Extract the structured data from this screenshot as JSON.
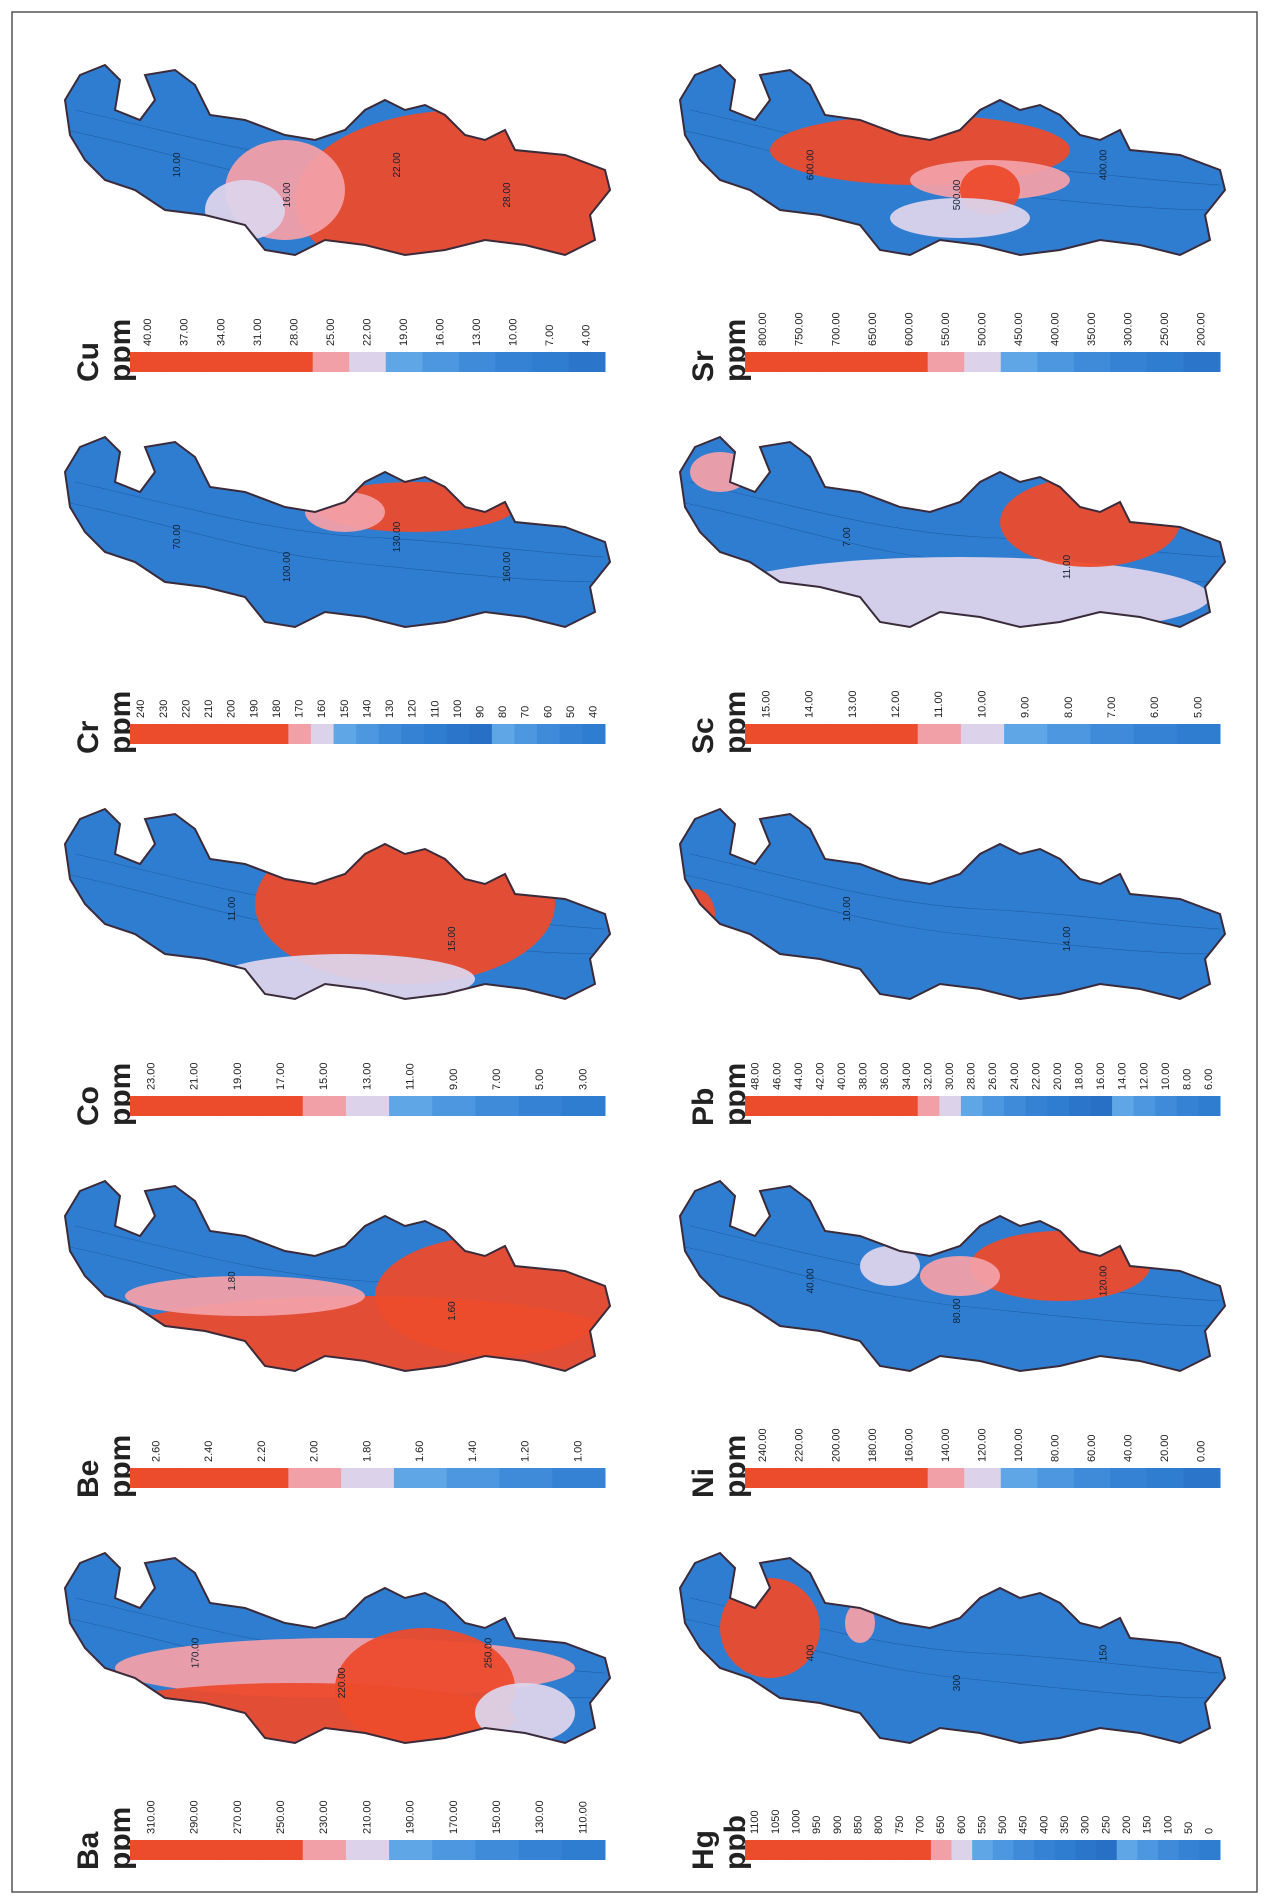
{
  "panels": [
    {
      "element": "Cu",
      "unit": "ppm",
      "legend": [
        "40.00",
        "37.00",
        "34.00",
        "31.00",
        "28.00",
        "25.00",
        "22.00",
        "19.00",
        "16.00",
        "13.00",
        "10.00",
        "7.00",
        "4.00"
      ],
      "contours": [
        "10.00",
        "16.00",
        "22.00",
        "28.00"
      ]
    },
    {
      "element": "Cr",
      "unit": "ppm",
      "legend": [
        "240",
        "230",
        "220",
        "210",
        "200",
        "190",
        "180",
        "170",
        "160",
        "150",
        "140",
        "130",
        "120",
        "110",
        "100",
        "90",
        "80",
        "70",
        "60",
        "50",
        "40"
      ],
      "contours": [
        "70.00",
        "100.00",
        "130.00",
        "160.00"
      ]
    },
    {
      "element": "Co",
      "unit": "ppm",
      "legend": [
        "23.00",
        "21.00",
        "19.00",
        "17.00",
        "15.00",
        "13.00",
        "11.00",
        "9.00",
        "7.00",
        "5.00",
        "3.00"
      ],
      "contours": [
        "11.00",
        "15.00"
      ]
    },
    {
      "element": "Be",
      "unit": "ppm",
      "legend": [
        "2.60",
        "2.40",
        "2.20",
        "2.00",
        "1.80",
        "1.60",
        "1.40",
        "1.20",
        "1.00"
      ],
      "contours": [
        "1.80",
        "1.60"
      ]
    },
    {
      "element": "Ba",
      "unit": "ppm",
      "legend": [
        "310.00",
        "290.00",
        "270.00",
        "250.00",
        "230.00",
        "210.00",
        "190.00",
        "170.00",
        "150.00",
        "130.00",
        "110.00"
      ],
      "contours": [
        "170.00",
        "220.00",
        "250.00"
      ]
    },
    {
      "element": "Sr",
      "unit": "ppm",
      "legend": [
        "800.00",
        "750.00",
        "700.00",
        "650.00",
        "600.00",
        "550.00",
        "500.00",
        "450.00",
        "400.00",
        "350.00",
        "300.00",
        "250.00",
        "200.00"
      ],
      "contours": [
        "600.00",
        "500.00",
        "400.00"
      ]
    },
    {
      "element": "Sc",
      "unit": "ppm",
      "legend": [
        "15.00",
        "14.00",
        "13.00",
        "12.00",
        "11.00",
        "10.00",
        "9.00",
        "8.00",
        "7.00",
        "6.00",
        "5.00"
      ],
      "contours": [
        "7.00",
        "11.00"
      ]
    },
    {
      "element": "Pb",
      "unit": "ppm",
      "legend": [
        "48.00",
        "46.00",
        "44.00",
        "42.00",
        "40.00",
        "38.00",
        "36.00",
        "34.00",
        "32.00",
        "30.00",
        "28.00",
        "26.00",
        "24.00",
        "22.00",
        "20.00",
        "18.00",
        "16.00",
        "14.00",
        "12.00",
        "10.00",
        "8.00",
        "6.00"
      ],
      "contours": [
        "10.00",
        "14.00"
      ]
    },
    {
      "element": "Ni",
      "unit": "ppm",
      "legend": [
        "240.00",
        "220.00",
        "200.00",
        "180.00",
        "160.00",
        "140.00",
        "120.00",
        "100.00",
        "80.00",
        "60.00",
        "40.00",
        "20.00",
        "0.00"
      ],
      "contours": [
        "40.00",
        "80.00",
        "120.00"
      ]
    },
    {
      "element": "Hg",
      "unit": "ppb",
      "legend": [
        "1100",
        "1050",
        "1000",
        "950",
        "900",
        "850",
        "800",
        "750",
        "700",
        "650",
        "600",
        "550",
        "500",
        "450",
        "400",
        "350",
        "300",
        "250",
        "200",
        "150",
        "100",
        "50",
        "0"
      ],
      "contours": [
        "400",
        "300",
        "150"
      ]
    }
  ]
}
